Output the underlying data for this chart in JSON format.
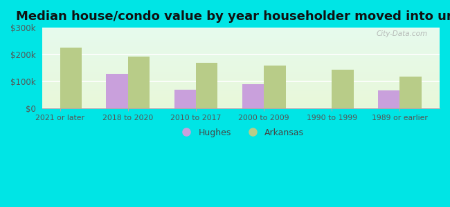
{
  "title": "Median house/condo value by year householder moved into unit",
  "categories": [
    "2021 or later",
    "2018 to 2020",
    "2010 to 2017",
    "2000 to 2009",
    "1990 to 1999",
    "1989 or earlier"
  ],
  "hughes_values": [
    null,
    130000,
    70000,
    90000,
    null,
    68000
  ],
  "arkansas_values": [
    225000,
    193000,
    170000,
    160000,
    145000,
    118000
  ],
  "hughes_color": "#c9a0dc",
  "arkansas_color": "#b8cc88",
  "background_outer": "#00e5e5",
  "ylim": [
    0,
    300000
  ],
  "yticks": [
    0,
    100000,
    200000,
    300000
  ],
  "ytick_labels": [
    "$0",
    "$100k",
    "$200k",
    "$300k"
  ],
  "legend_hughes": "Hughes",
  "legend_arkansas": "Arkansas",
  "bar_width": 0.32,
  "title_fontsize": 13,
  "watermark": "City-Data.com"
}
